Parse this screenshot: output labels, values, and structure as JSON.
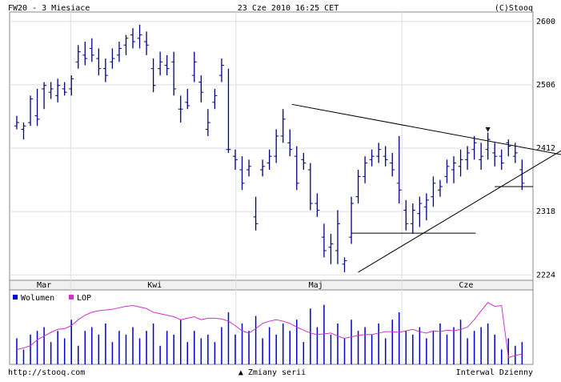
{
  "chart_data": {
    "type": "ohlc",
    "title": "FW20 - 3 Miesiace",
    "subtitle": "23 Cze 2010 16:25 CET",
    "credit": "(C)Stooq",
    "footer_left": "http://stooq.com",
    "footer_center": "▲ Zmiany serii",
    "footer_right": "Interwal Dzienny",
    "color": "#000080",
    "open": [
      2445,
      2440,
      2450,
      2460,
      2500,
      2495,
      2490,
      2500,
      2500,
      2540,
      2550,
      2560,
      2545,
      2530,
      2540,
      2550,
      2565,
      2580,
      2575,
      2570,
      2530,
      2530,
      2535,
      2540,
      2470,
      2480,
      2520,
      2510,
      2440,
      2480,
      2520,
      2410,
      2400,
      2380,
      2380,
      2310,
      2380,
      2390,
      2400,
      2430,
      2420,
      2400,
      2395,
      2380,
      2330,
      2280,
      2265,
      2260,
      2240,
      2280,
      2340,
      2370,
      2395,
      2400,
      2400,
      2390,
      2360,
      2320,
      2300,
      2315,
      2325,
      2340,
      2350,
      2370,
      2380,
      2385,
      2395,
      2410,
      2395,
      2410,
      2405,
      2400,
      2420,
      2400,
      2380
    ],
    "high": [
      2460,
      2450,
      2490,
      2500,
      2510,
      2510,
      2515,
      2510,
      2520,
      2565,
      2570,
      2575,
      2560,
      2545,
      2560,
      2570,
      2580,
      2590,
      2595,
      2585,
      2545,
      2555,
      2550,
      2555,
      2490,
      2500,
      2555,
      2520,
      2470,
      2500,
      2545,
      2530,
      2410,
      2400,
      2395,
      2340,
      2395,
      2410,
      2440,
      2470,
      2440,
      2415,
      2405,
      2390,
      2345,
      2300,
      2285,
      2320,
      2250,
      2340,
      2380,
      2400,
      2410,
      2420,
      2415,
      2405,
      2430,
      2335,
      2330,
      2340,
      2345,
      2370,
      2365,
      2395,
      2400,
      2410,
      2415,
      2430,
      2420,
      2435,
      2420,
      2410,
      2425,
      2420,
      2395
    ],
    "low": [
      2440,
      2425,
      2445,
      2445,
      2470,
      2485,
      2480,
      2490,
      2490,
      2530,
      2535,
      2540,
      2520,
      2510,
      2530,
      2540,
      2550,
      2560,
      2560,
      2550,
      2495,
      2520,
      2520,
      2490,
      2450,
      2470,
      2510,
      2480,
      2430,
      2470,
      2510,
      2405,
      2380,
      2350,
      2370,
      2290,
      2370,
      2380,
      2390,
      2420,
      2400,
      2350,
      2380,
      2320,
      2310,
      2250,
      2240,
      2240,
      2228,
      2270,
      2330,
      2360,
      2385,
      2390,
      2385,
      2370,
      2330,
      2290,
      2285,
      2295,
      2305,
      2325,
      2340,
      2360,
      2360,
      2370,
      2380,
      2395,
      2380,
      2395,
      2385,
      2380,
      2400,
      2390,
      2350
    ],
    "close": [
      2450,
      2445,
      2485,
      2455,
      2505,
      2500,
      2505,
      2495,
      2515,
      2555,
      2545,
      2550,
      2530,
      2520,
      2545,
      2560,
      2575,
      2570,
      2580,
      2565,
      2505,
      2540,
      2530,
      2500,
      2470,
      2475,
      2540,
      2495,
      2450,
      2490,
      2535,
      2410,
      2395,
      2360,
      2385,
      2300,
      2385,
      2400,
      2430,
      2455,
      2410,
      2360,
      2390,
      2330,
      2320,
      2260,
      2270,
      2300,
      2245,
      2330,
      2370,
      2390,
      2400,
      2410,
      2395,
      2380,
      2350,
      2300,
      2320,
      2330,
      2335,
      2360,
      2355,
      2385,
      2390,
      2395,
      2405,
      2420,
      2400,
      2425,
      2400,
      2390,
      2415,
      2405,
      2360
    ],
    "xlim": [
      -1.05,
      75.6
    ],
    "ylim": [
      2216,
      2614
    ],
    "yticks": [
      2224,
      2318,
      2412,
      2506,
      2600
    ],
    "month_bounds": [
      7.9,
      32.1,
      56.4
    ],
    "xticks": [
      {
        "value": 4,
        "label": "Mar"
      },
      {
        "value": 20.2,
        "label": "Kwi"
      },
      {
        "value": 43.8,
        "label": "Maj"
      },
      {
        "value": 65.8,
        "label": "Cze"
      }
    ],
    "trendlines": [
      {
        "x": [
          40.3,
          80
        ],
        "y": [
          2477,
          2402
        ]
      },
      {
        "x": [
          50,
          80
        ],
        "y": [
          2228,
          2410
        ]
      },
      {
        "x": [
          49,
          67.2
        ],
        "y": [
          2286,
          2286
        ]
      },
      {
        "x": [
          70,
          75.6
        ],
        "y": [
          2355,
          2355
        ]
      }
    ],
    "marker": {
      "x": 69,
      "y": 2440,
      "label": "▼"
    },
    "lower": {
      "ylim": [
        0,
        100
      ],
      "series": [
        {
          "name": "Wolumen",
          "color": "#0000cc",
          "values": [
            35,
            20,
            40,
            45,
            50,
            30,
            45,
            35,
            60,
            25,
            45,
            50,
            40,
            55,
            30,
            45,
            40,
            50,
            35,
            45,
            55,
            25,
            45,
            40,
            60,
            30,
            45,
            35,
            40,
            30,
            50,
            70,
            40,
            55,
            45,
            65,
            35,
            50,
            40,
            55,
            45,
            60,
            30,
            75,
            50,
            80,
            40,
            55,
            35,
            60,
            45,
            50,
            40,
            55,
            35,
            60,
            70,
            45,
            40,
            50,
            35,
            45,
            55,
            40,
            50,
            60,
            35,
            45,
            50,
            55,
            40,
            20,
            35,
            25,
            30
          ]
        },
        {
          "name": "LOP",
          "color": "#cc33cc",
          "values": [
            20,
            22,
            25,
            33,
            38,
            43,
            47,
            48,
            52,
            60,
            66,
            70,
            72,
            73,
            74,
            76,
            78,
            79,
            77,
            75,
            70,
            68,
            66,
            64,
            60,
            62,
            64,
            60,
            62,
            62,
            61,
            58,
            52,
            45,
            42,
            48,
            55,
            58,
            60,
            58,
            55,
            50,
            46,
            42,
            40,
            41,
            42,
            38,
            35,
            37,
            39,
            40,
            40,
            42,
            44,
            44,
            43,
            45,
            47,
            44,
            42,
            45,
            44,
            46,
            45,
            47,
            50,
            60,
            72,
            83,
            78,
            79,
            9,
            12,
            14
          ]
        }
      ]
    }
  }
}
